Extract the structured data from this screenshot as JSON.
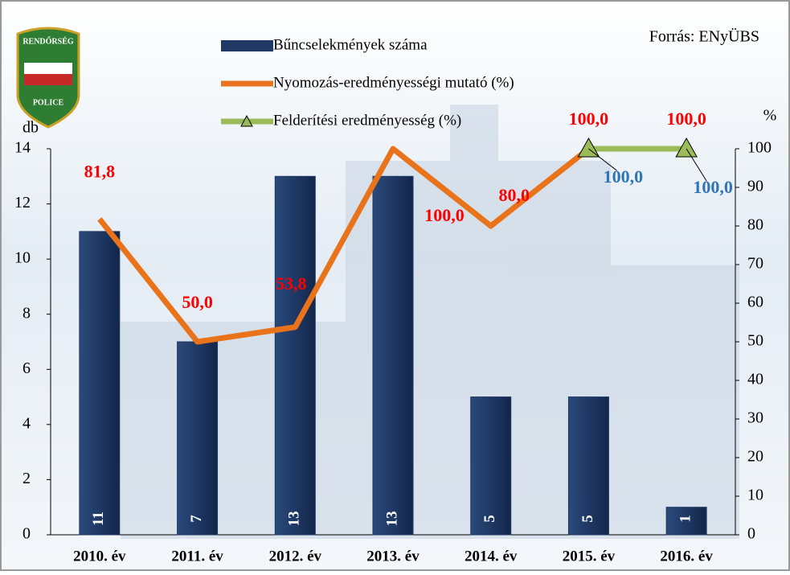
{
  "chart_data": {
    "type": "combo",
    "source": "Forrás: ENyÜBS",
    "logo": {
      "top": "RENDŐRSÉG",
      "bottom": "POLICE"
    },
    "y_label": "db",
    "y2_label": "%",
    "categories": [
      "2010. év",
      "2011. év",
      "2012. év",
      "2013. év",
      "2014. év",
      "2015. év",
      "2016. év"
    ],
    "series": [
      {
        "name": "Bűncselekmények száma",
        "type": "bar",
        "color": "#1f3864",
        "values": [
          11,
          7,
          13,
          13,
          5,
          5,
          1
        ]
      },
      {
        "name": "Nyomozás-eredményességi mutató (%)",
        "type": "line",
        "axis": "y2",
        "color": "#e8731a",
        "label_color": "#ff0000",
        "values": [
          81.8,
          50,
          53.8,
          100,
          80,
          100,
          100
        ],
        "value_labels": [
          "81,8",
          "50,0",
          "53,8",
          "100,0",
          "80,0",
          "100,0",
          "100,0"
        ]
      },
      {
        "name": "Felderítési eredményesség (%)",
        "type": "line",
        "axis": "y2",
        "color": "#9bbb59",
        "marker": "triangle",
        "label_color": "#2e75b6",
        "values": [
          null,
          null,
          null,
          null,
          null,
          100,
          100
        ],
        "value_labels": [
          null,
          null,
          null,
          null,
          null,
          "100,0",
          "100,0"
        ]
      }
    ],
    "ylim": [
      0,
      14
    ],
    "yticks": [
      0,
      2,
      4,
      6,
      8,
      10,
      12,
      14
    ],
    "y2lim": [
      0,
      100
    ],
    "y2ticks": [
      0,
      10,
      20,
      30,
      40,
      50,
      60,
      70,
      80,
      90,
      100
    ]
  }
}
